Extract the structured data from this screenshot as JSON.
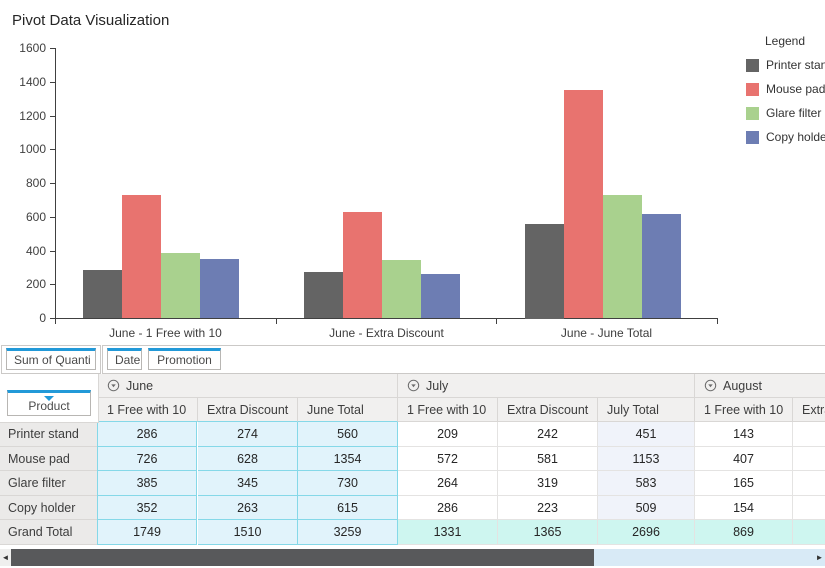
{
  "title": "Pivot Data Visualization",
  "chart_data": {
    "type": "bar",
    "categories": [
      "June - 1 Free with 10",
      "June - Extra Discount",
      "June - June Total"
    ],
    "series": [
      {
        "name": "Printer stand",
        "color": "#646464",
        "values": [
          286,
          274,
          560
        ]
      },
      {
        "name": "Mouse pad",
        "color": "#e8736f",
        "values": [
          726,
          628,
          1354
        ]
      },
      {
        "name": "Glare filter",
        "color": "#a9d18e",
        "values": [
          385,
          345,
          730
        ]
      },
      {
        "name": "Copy holder",
        "color": "#6d7db3",
        "values": [
          352,
          263,
          615
        ]
      }
    ],
    "title": "Pivot Data Visualization",
    "xlabel": "",
    "ylabel": "",
    "ylim": [
      0,
      1600
    ],
    "ytick_step": 200,
    "grid": false,
    "legend_title": "Legend",
    "legend_position": "right"
  },
  "field_panel": {
    "value_field": "Sum of Quanti",
    "column_fields": [
      "Date",
      "Promotion"
    ],
    "row_field": "Product"
  },
  "pivot_table": {
    "groups": [
      {
        "label": "June",
        "columns": [
          "1 Free with 10",
          "Extra Discount",
          "June Total"
        ],
        "selected": true
      },
      {
        "label": "July",
        "columns": [
          "1 Free with 10",
          "Extra Discount",
          "July Total"
        ],
        "selected": false
      },
      {
        "label": "August",
        "columns": [
          "1 Free with 10",
          "Extra Discount"
        ],
        "selected": false
      }
    ],
    "rows": [
      {
        "label": "Printer stand",
        "values": [
          "286",
          "274",
          "560",
          "209",
          "242",
          "451",
          "143",
          ""
        ],
        "is_total": false
      },
      {
        "label": "Mouse pad",
        "values": [
          "726",
          "628",
          "1354",
          "572",
          "581",
          "1153",
          "407",
          ""
        ],
        "is_total": false
      },
      {
        "label": "Glare filter",
        "values": [
          "385",
          "345",
          "730",
          "264",
          "319",
          "583",
          "165",
          ""
        ],
        "is_total": false
      },
      {
        "label": "Copy holder",
        "values": [
          "352",
          "263",
          "615",
          "286",
          "223",
          "509",
          "154",
          ""
        ],
        "is_total": false
      },
      {
        "label": "Grand Total",
        "values": [
          "1749",
          "1510",
          "3259",
          "1331",
          "1365",
          "2696",
          "869",
          ""
        ],
        "is_total": true
      }
    ]
  },
  "scrollbar": {
    "left_arrow": "◄",
    "right_arrow": "►"
  },
  "colors": {
    "accent_blue": "#2299d8",
    "june_selection_bg": "#e1f3fb",
    "june_selection_border": "#85d8e8",
    "total_column_bg": "#f0f3fa",
    "grand_total_bg": "#cef6f0",
    "header_bg": "#f1f0ef",
    "row_header_bg": "#ebeae9",
    "axis_color": "#404040"
  }
}
